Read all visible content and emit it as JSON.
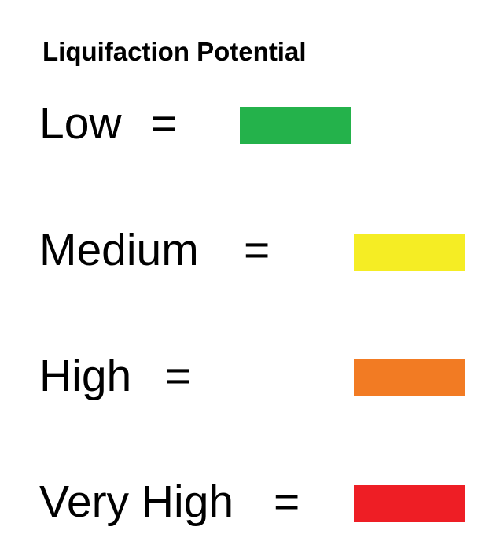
{
  "legend": {
    "title": "Liquifaction Potential",
    "equals": "=",
    "items": [
      {
        "label": "Low",
        "color": "#24b24b"
      },
      {
        "label": "Medium",
        "color": "#f5ed24"
      },
      {
        "label": "High",
        "color": "#f27b23"
      },
      {
        "label": "Very High",
        "color": "#ee1e25"
      }
    ]
  }
}
